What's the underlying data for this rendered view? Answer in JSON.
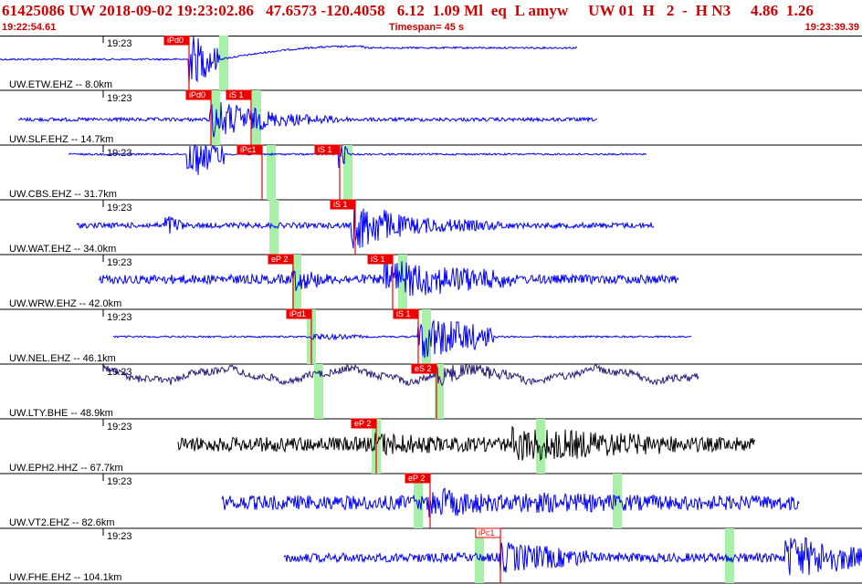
{
  "header": {
    "event_line": "61425086 UW 2018-09-02 19:23:02.86   47.6573 -120.4058   6.12  1.09 Ml  eq  L amyw     UW 01  H   2  -  H N3     4.86  1.26",
    "start_time": "19:22:54.61",
    "timespan": "Timespan=  45 s",
    "end_time": "19:23:39.39"
  },
  "time_tick_label": "19:23",
  "traces": [
    {
      "label": "UW.ETW.EHZ -- 8.0km",
      "color": "#0000ff",
      "picks": [
        {
          "text": "iPd0",
          "style": "solid"
        }
      ]
    },
    {
      "label": "UW.SLF.EHZ -- 14.7km",
      "color": "#0000ff",
      "picks": [
        {
          "text": "iPd0",
          "style": "solid"
        },
        {
          "text": "iS 1",
          "style": "solid"
        }
      ]
    },
    {
      "label": "UW.CBS.EHZ -- 31.7km",
      "color": "#0000ff",
      "picks": [
        {
          "text": "iPc1",
          "style": "solid"
        },
        {
          "text": "iS 1",
          "style": "solid"
        }
      ]
    },
    {
      "label": "UW.WAT.EHZ -- 34.0km",
      "color": "#0000ff",
      "picks": [
        {
          "text": "iS 1",
          "style": "solid"
        }
      ]
    },
    {
      "label": "UW.WRW.EHZ -- 42.0km",
      "color": "#0000ff",
      "picks": [
        {
          "text": "eP 2",
          "style": "solid"
        },
        {
          "text": "iS 1",
          "style": "solid"
        }
      ]
    },
    {
      "label": "UW.NEL.EHZ -- 46.1km",
      "color": "#0000ff",
      "picks": [
        {
          "text": "iPd1",
          "style": "solid"
        },
        {
          "text": "iS 1",
          "style": "solid"
        }
      ]
    },
    {
      "label": "UW.LTY.BHE -- 48.9km",
      "color": "#2a1a7a",
      "picks": [
        {
          "text": "eS 2",
          "style": "solid"
        }
      ]
    },
    {
      "label": "UW.EPH2.HHZ -- 67.7km",
      "color": "#000000",
      "picks": [
        {
          "text": "eP 2",
          "style": "solid"
        }
      ]
    },
    {
      "label": "UW.VT2.EHZ -- 82.6km",
      "color": "#0000ff",
      "picks": [
        {
          "text": "eP 2",
          "style": "solid"
        }
      ]
    },
    {
      "label": "UW.FHE.EHZ -- 104.1km",
      "color": "#0000ff",
      "picks": [
        {
          "text": "iPc1",
          "style": "outline"
        }
      ]
    }
  ],
  "colors": {
    "header_text": "#d00000",
    "pick_flag": "#ee0000",
    "theoretical_band": "#a8f0a8",
    "trace_blue": "#0000ff"
  }
}
